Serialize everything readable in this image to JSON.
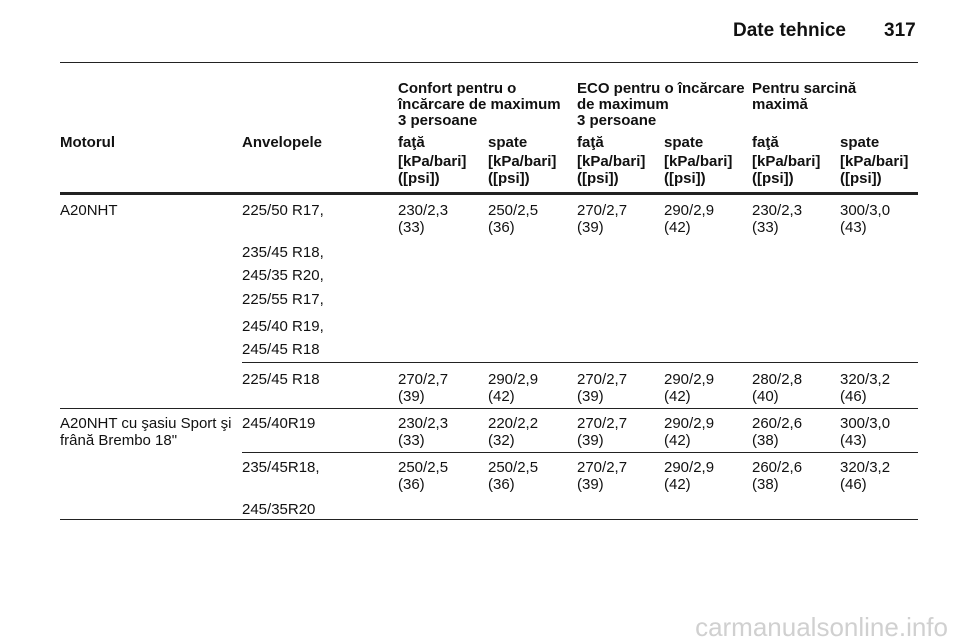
{
  "header": {
    "title": "Date tehnice",
    "page": "317"
  },
  "table": {
    "group_headers": [
      [
        "Confort pentru o",
        "încărcare de maximum",
        "3 persoane"
      ],
      [
        "ECO pentru o încărcare",
        "de maximum",
        "3 persoane"
      ],
      [
        "Pentru sarcină",
        "maximă"
      ]
    ],
    "columns": [
      "Motorul",
      "Anvelopele",
      "faţă",
      "spate",
      "faţă",
      "spate",
      "faţă",
      "spate"
    ],
    "units": [
      [
        "[kPa/bari]",
        "([psi])"
      ],
      [
        "[kPa/bari]",
        "([psi])"
      ],
      [
        "[kPa/bari]",
        "([psi])"
      ],
      [
        "[kPa/bari]",
        "([psi])"
      ],
      [
        "[kPa/bari]",
        "([psi])"
      ],
      [
        "[kPa/bari]",
        "([psi])"
      ]
    ],
    "rows": [
      {
        "engine": [
          "A20NHT"
        ],
        "tires": [
          "225/50 R17,",
          "235/45 R18,",
          "245/35 R20,",
          "225/55 R17,",
          "245/40 R19,",
          "245/45 R18"
        ],
        "values": [
          [
            "230/2,3",
            "(33)"
          ],
          [
            "250/2,5",
            "(36)"
          ],
          [
            "270/2,7",
            "(39)"
          ],
          [
            "290/2,9",
            "(42)"
          ],
          [
            "230/2,3",
            "(33)"
          ],
          [
            "300/3,0",
            "(43)"
          ]
        ]
      },
      {
        "tires": [
          "225/45 R18"
        ],
        "values": [
          [
            "270/2,7",
            "(39)"
          ],
          [
            "290/2,9",
            "(42)"
          ],
          [
            "270/2,7",
            "(39)"
          ],
          [
            "290/2,9",
            "(42)"
          ],
          [
            "280/2,8",
            "(40)"
          ],
          [
            "320/3,2",
            "(46)"
          ]
        ]
      },
      {
        "engine": [
          "A20NHT cu şasiu Sport şi",
          "frână Brembo 18\""
        ],
        "tires": [
          "245/40R19"
        ],
        "values": [
          [
            "230/2,3",
            "(33)"
          ],
          [
            "220/2,2",
            "(32)"
          ],
          [
            "270/2,7",
            "(39)"
          ],
          [
            "290/2,9",
            "(42)"
          ],
          [
            "260/2,6",
            "(38)"
          ],
          [
            "300/3,0",
            "(43)"
          ]
        ]
      },
      {
        "tires": [
          "235/45R18,",
          "245/35R20"
        ],
        "values": [
          [
            "250/2,5",
            "(36)"
          ],
          [
            "250/2,5",
            "(36)"
          ],
          [
            "270/2,7",
            "(39)"
          ],
          [
            "290/2,9",
            "(42)"
          ],
          [
            "260/2,6",
            "(38)"
          ],
          [
            "320/3,2",
            "(46)"
          ]
        ]
      }
    ]
  },
  "watermark": "carmanualsonline.info"
}
